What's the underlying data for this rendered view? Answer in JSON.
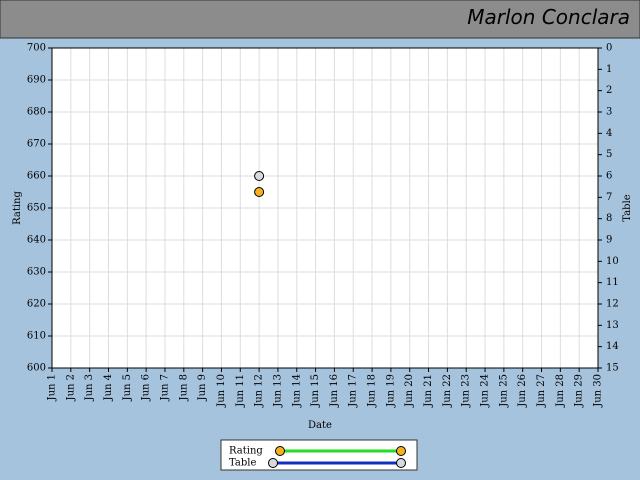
{
  "header": {
    "title": "Marlon Conclara"
  },
  "chart_data": {
    "type": "line",
    "x_label": "Date",
    "y_label": "Rating",
    "y2_label": "Table",
    "categories": [
      "Jun 1",
      "Jun 2",
      "Jun 3",
      "Jun 4",
      "Jun 5",
      "Jun 6",
      "Jun 7",
      "Jun 8",
      "Jun 9",
      "Jun 10",
      "Jun 11",
      "Jun 12",
      "Jun 13",
      "Jun 14",
      "Jun 15",
      "Jun 16",
      "Jun 17",
      "Jun 18",
      "Jun 19",
      "Jun 20",
      "Jun 21",
      "Jun 22",
      "Jun 23",
      "Jun 24",
      "Jun 25",
      "Jun 26",
      "Jun 27",
      "Jun 28",
      "Jun 29",
      "Jun 30"
    ],
    "series": [
      {
        "name": "Rating",
        "color": "#22dd22",
        "marker_color": "#f5b21e",
        "values": [
          null,
          null,
          null,
          null,
          null,
          null,
          null,
          null,
          null,
          null,
          null,
          655,
          null,
          null,
          null,
          null,
          null,
          null,
          null,
          null,
          null,
          null,
          null,
          null,
          null,
          null,
          null,
          null,
          null,
          null
        ]
      },
      {
        "name": "Table",
        "color": "#1030c0",
        "marker_color": "#d8d8e0",
        "axis": "y2",
        "values": [
          null,
          null,
          null,
          null,
          null,
          null,
          null,
          null,
          null,
          null,
          null,
          6,
          null,
          null,
          null,
          null,
          null,
          null,
          null,
          null,
          null,
          null,
          null,
          null,
          null,
          null,
          null,
          null,
          null,
          null
        ]
      }
    ],
    "ylim": [
      600,
      700
    ],
    "yticks": [
      600,
      610,
      620,
      630,
      640,
      650,
      660,
      670,
      680,
      690,
      700
    ],
    "y2lim": [
      0,
      15
    ],
    "y2_reversed": true,
    "y2ticks": [
      0,
      1,
      2,
      3,
      4,
      5,
      6,
      7,
      8,
      9,
      10,
      11,
      12,
      13,
      14,
      15
    ],
    "grid": true
  }
}
